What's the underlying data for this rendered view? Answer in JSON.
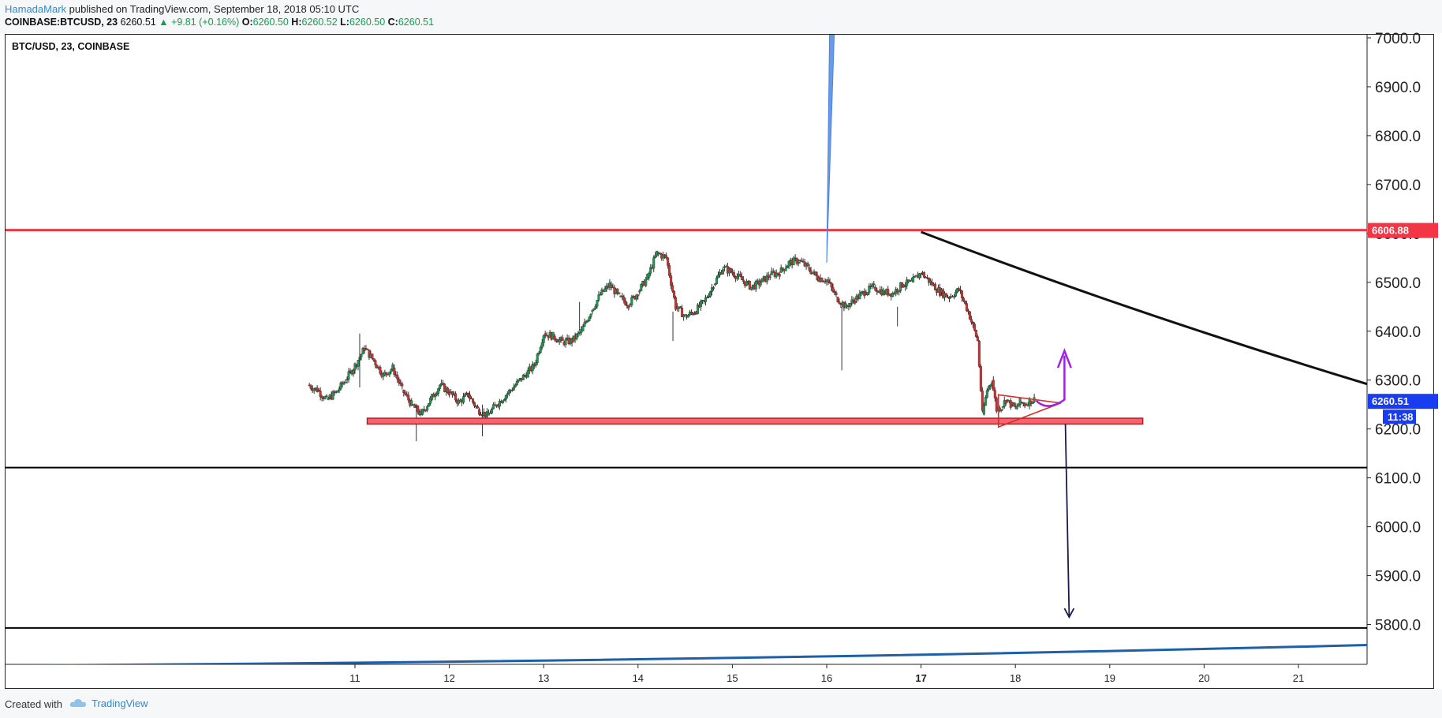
{
  "header": {
    "author": "HamadaMark",
    "published": "published on TradingView.com, September 18, 2018 05:10 UTC",
    "symbol_label": "COINBASE:BTCUSD, 23",
    "last": "6260.51",
    "change": "▲ +9.81 (+0.16%)",
    "o_label": "O:",
    "o": "6260.50",
    "h_label": "H:",
    "h": "6260.52",
    "l_label": "L:",
    "l": "6260.50",
    "c_label": "C:",
    "c": "6260.51"
  },
  "chart_title": "BTC/USD, 23, COINBASE",
  "footer": {
    "created_with": "Created with",
    "brand": "TradingView"
  },
  "colors": {
    "up": "#1b9a52",
    "down": "#d32f2f",
    "resistance": "#f23645",
    "price_tag": "#1a3cf0",
    "arrow_up": "#9b22e0",
    "arrow_down": "#1a1a4a",
    "trend_blue": "#1e5fa8"
  },
  "chart_data": {
    "type": "candlestick",
    "symbol": "BTC/USD",
    "exchange": "COINBASE",
    "interval": "23",
    "y_axis": {
      "ticks": [
        "7000.0",
        "6900.0",
        "6800.0",
        "6700.0",
        "6600.0",
        "6500.0",
        "6400.0",
        "6300.0",
        "6200.0",
        "6100.0",
        "6000.0",
        "5900.0",
        "5800.0"
      ],
      "range": [
        5720,
        7010
      ]
    },
    "x_axis": {
      "ticks": [
        "11",
        "12",
        "13",
        "14",
        "15",
        "16",
        "17",
        "18",
        "19",
        "20",
        "21"
      ],
      "range_days": [
        10.0,
        21.8
      ]
    },
    "last_price": "6260.51",
    "countdown": "11:38",
    "resistance_level": "6606.88",
    "support_zone": [
      6210,
      6222
    ],
    "horizontal_lines": [
      6121,
      5793
    ],
    "price_path": [
      [
        10.5,
        6290
      ],
      [
        10.6,
        6280
      ],
      [
        10.7,
        6260
      ],
      [
        10.8,
        6275
      ],
      [
        10.9,
        6300
      ],
      [
        11.0,
        6330
      ],
      [
        11.1,
        6365
      ],
      [
        11.2,
        6340
      ],
      [
        11.3,
        6310
      ],
      [
        11.4,
        6325
      ],
      [
        11.5,
        6280
      ],
      [
        11.6,
        6250
      ],
      [
        11.7,
        6230
      ],
      [
        11.8,
        6260
      ],
      [
        11.9,
        6290
      ],
      [
        12.0,
        6275
      ],
      [
        12.1,
        6255
      ],
      [
        12.2,
        6270
      ],
      [
        12.3,
        6240
      ],
      [
        12.4,
        6228
      ],
      [
        12.5,
        6250
      ],
      [
        12.6,
        6270
      ],
      [
        12.7,
        6290
      ],
      [
        12.8,
        6310
      ],
      [
        12.9,
        6330
      ],
      [
        13.0,
        6395
      ],
      [
        13.1,
        6390
      ],
      [
        13.2,
        6378
      ],
      [
        13.3,
        6380
      ],
      [
        13.4,
        6400
      ],
      [
        13.5,
        6440
      ],
      [
        13.6,
        6475
      ],
      [
        13.7,
        6495
      ],
      [
        13.8,
        6470
      ],
      [
        13.9,
        6455
      ],
      [
        14.0,
        6480
      ],
      [
        14.1,
        6510
      ],
      [
        14.2,
        6560
      ],
      [
        14.3,
        6550
      ],
      [
        14.4,
        6450
      ],
      [
        14.5,
        6430
      ],
      [
        14.6,
        6440
      ],
      [
        14.7,
        6460
      ],
      [
        14.8,
        6495
      ],
      [
        14.9,
        6530
      ],
      [
        15.0,
        6520
      ],
      [
        15.1,
        6505
      ],
      [
        15.2,
        6490
      ],
      [
        15.3,
        6500
      ],
      [
        15.4,
        6515
      ],
      [
        15.5,
        6520
      ],
      [
        15.6,
        6540
      ],
      [
        15.7,
        6545
      ],
      [
        15.8,
        6530
      ],
      [
        15.9,
        6510
      ],
      [
        16.0,
        6505
      ],
      [
        16.1,
        6470
      ],
      [
        16.2,
        6450
      ],
      [
        16.3,
        6465
      ],
      [
        16.4,
        6480
      ],
      [
        16.5,
        6490
      ],
      [
        16.6,
        6480
      ],
      [
        16.7,
        6478
      ],
      [
        16.8,
        6495
      ],
      [
        16.9,
        6500
      ],
      [
        17.0,
        6520
      ],
      [
        17.1,
        6500
      ],
      [
        17.2,
        6480
      ],
      [
        17.3,
        6470
      ],
      [
        17.4,
        6485
      ],
      [
        17.5,
        6440
      ],
      [
        17.6,
        6380
      ],
      [
        17.65,
        6230
      ],
      [
        17.7,
        6280
      ],
      [
        17.75,
        6300
      ],
      [
        17.8,
        6240
      ],
      [
        17.85,
        6245
      ],
      [
        17.9,
        6260
      ],
      [
        17.95,
        6250
      ],
      [
        18.0,
        6242
      ],
      [
        18.05,
        6255
      ],
      [
        18.1,
        6250
      ],
      [
        18.15,
        6258
      ],
      [
        18.2,
        6260
      ]
    ],
    "annotations": [
      {
        "type": "projection_arrow",
        "direction": "up",
        "target": 6360
      },
      {
        "type": "projection_arrow",
        "direction": "down",
        "target": 5815
      },
      {
        "type": "triangle",
        "label": ""
      },
      {
        "type": "trend_curve",
        "color": "black"
      },
      {
        "type": "trend_curve",
        "color": "blue"
      }
    ]
  }
}
